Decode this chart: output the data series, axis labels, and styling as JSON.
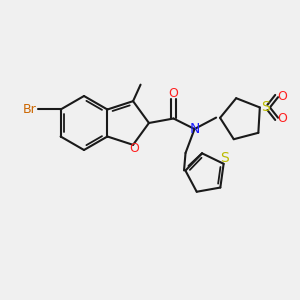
{
  "bg_color": "#f0f0f0",
  "bond_color": "#1a1a1a",
  "colors": {
    "N": "#2020ff",
    "O": "#ff2020",
    "S_thio": "#bbbb00",
    "S_ring": "#bbbb00",
    "Br": "#cc6600",
    "C": "#1a1a1a"
  },
  "lw": 1.5,
  "lw_thin": 1.2
}
